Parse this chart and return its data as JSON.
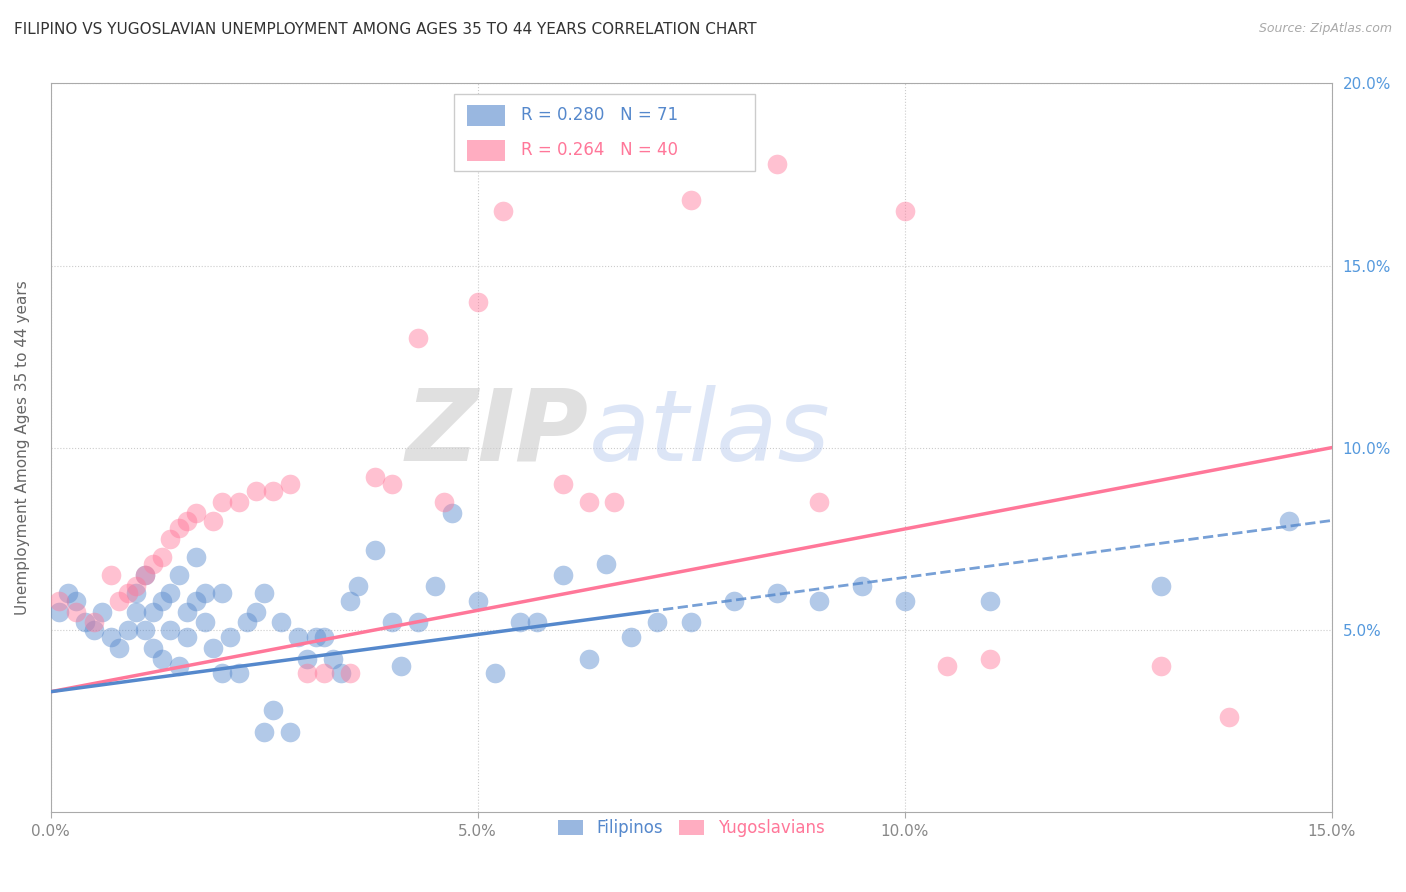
{
  "title": "FILIPINO VS YUGOSLAVIAN UNEMPLOYMENT AMONG AGES 35 TO 44 YEARS CORRELATION CHART",
  "source": "Source: ZipAtlas.com",
  "ylabel": "Unemployment Among Ages 35 to 44 years",
  "xlim": [
    0.0,
    0.15
  ],
  "ylim": [
    0.0,
    0.2
  ],
  "xticks": [
    0.0,
    0.05,
    0.1,
    0.15
  ],
  "yticks": [
    0.05,
    0.1,
    0.15,
    0.2
  ],
  "xtick_labels": [
    "0.0%",
    "5.0%",
    "10.0%",
    "15.0%"
  ],
  "right_ytick_labels": [
    "5.0%",
    "10.0%",
    "15.0%",
    "20.0%"
  ],
  "filipino_color": "#5588CC",
  "yugoslavian_color": "#FF7799",
  "filipino_R": 0.28,
  "filipino_N": 71,
  "yugoslavian_R": 0.264,
  "yugoslavian_N": 40,
  "filipino_x": [
    0.001,
    0.002,
    0.003,
    0.004,
    0.005,
    0.006,
    0.007,
    0.008,
    0.009,
    0.01,
    0.01,
    0.011,
    0.011,
    0.012,
    0.012,
    0.013,
    0.013,
    0.014,
    0.014,
    0.015,
    0.015,
    0.016,
    0.016,
    0.017,
    0.017,
    0.018,
    0.018,
    0.019,
    0.02,
    0.02,
    0.021,
    0.022,
    0.023,
    0.024,
    0.025,
    0.025,
    0.026,
    0.027,
    0.028,
    0.029,
    0.03,
    0.031,
    0.032,
    0.033,
    0.034,
    0.035,
    0.036,
    0.038,
    0.04,
    0.041,
    0.043,
    0.045,
    0.047,
    0.05,
    0.052,
    0.055,
    0.057,
    0.06,
    0.063,
    0.065,
    0.068,
    0.071,
    0.075,
    0.08,
    0.085,
    0.09,
    0.095,
    0.1,
    0.11,
    0.13,
    0.145
  ],
  "filipino_y": [
    0.055,
    0.06,
    0.058,
    0.052,
    0.05,
    0.055,
    0.048,
    0.045,
    0.05,
    0.055,
    0.06,
    0.05,
    0.065,
    0.045,
    0.055,
    0.042,
    0.058,
    0.05,
    0.06,
    0.04,
    0.065,
    0.048,
    0.055,
    0.058,
    0.07,
    0.052,
    0.06,
    0.045,
    0.038,
    0.06,
    0.048,
    0.038,
    0.052,
    0.055,
    0.022,
    0.06,
    0.028,
    0.052,
    0.022,
    0.048,
    0.042,
    0.048,
    0.048,
    0.042,
    0.038,
    0.058,
    0.062,
    0.072,
    0.052,
    0.04,
    0.052,
    0.062,
    0.082,
    0.058,
    0.038,
    0.052,
    0.052,
    0.065,
    0.042,
    0.068,
    0.048,
    0.052,
    0.052,
    0.058,
    0.06,
    0.058,
    0.062,
    0.058,
    0.058,
    0.062,
    0.08
  ],
  "yugoslavian_x": [
    0.001,
    0.003,
    0.005,
    0.007,
    0.008,
    0.009,
    0.01,
    0.011,
    0.012,
    0.013,
    0.014,
    0.015,
    0.016,
    0.017,
    0.019,
    0.02,
    0.022,
    0.024,
    0.026,
    0.028,
    0.03,
    0.032,
    0.035,
    0.038,
    0.04,
    0.043,
    0.046,
    0.05,
    0.053,
    0.06,
    0.063,
    0.066,
    0.075,
    0.085,
    0.09,
    0.1,
    0.105,
    0.11,
    0.13,
    0.138
  ],
  "yugoslavian_y": [
    0.058,
    0.055,
    0.052,
    0.065,
    0.058,
    0.06,
    0.062,
    0.065,
    0.068,
    0.07,
    0.075,
    0.078,
    0.08,
    0.082,
    0.08,
    0.085,
    0.085,
    0.088,
    0.088,
    0.09,
    0.038,
    0.038,
    0.038,
    0.092,
    0.09,
    0.13,
    0.085,
    0.14,
    0.165,
    0.09,
    0.085,
    0.085,
    0.168,
    0.178,
    0.085,
    0.165,
    0.04,
    0.042,
    0.04,
    0.026
  ],
  "watermark_zip": "ZIP",
  "watermark_atlas": "atlas",
  "background_color": "#ffffff",
  "grid_color": "#cccccc",
  "title_fontsize": 11,
  "axis_label_fontsize": 11,
  "tick_fontsize": 11,
  "legend_fontsize": 12,
  "fil_line_start": 0.0,
  "fil_line_end_solid": 0.07,
  "fil_line_end_dashed": 0.15,
  "yug_line_start": 0.0,
  "yug_line_end": 0.15,
  "fil_line_y_start": 0.033,
  "fil_line_y_end_solid": 0.055,
  "fil_line_y_end_dashed": 0.08,
  "yug_line_y_start": 0.033,
  "yug_line_y_end": 0.1
}
